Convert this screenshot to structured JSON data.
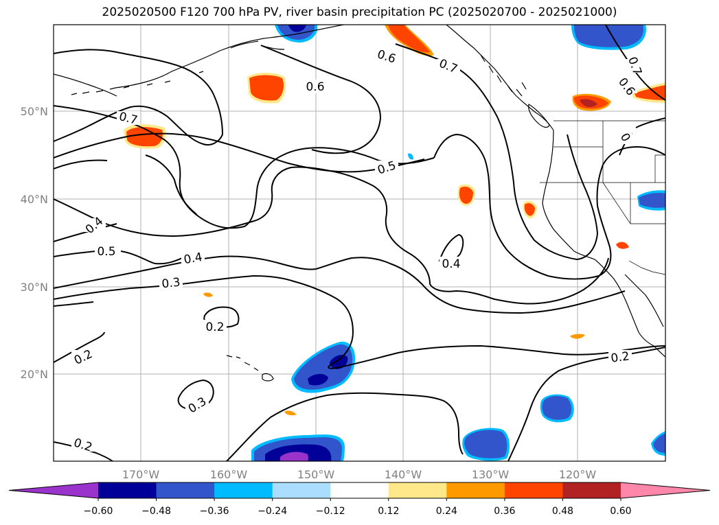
{
  "title": "2025020500 F120 700 hPa PV, river basin precipitation PC (2025020700 - 2025021000)",
  "map": {
    "lat_labels": [
      "20°N",
      "30°N",
      "40°N",
      "50°N"
    ],
    "lon_labels": [
      "170°W",
      "160°W",
      "150°W",
      "140°W",
      "130°W",
      "120°W"
    ],
    "contour_labels": {
      "c1": "0.7",
      "c2": "0.6",
      "c3": "0.7",
      "c4": "0.6",
      "c5": "0.7",
      "c6": "0.6",
      "c7": "0",
      "c8": "0.5",
      "c9": "0.4",
      "c10": "0.5",
      "c11": "0.4",
      "c12": "0.3",
      "c13": "0.4",
      "c14": "0.2",
      "c15": "0.2",
      "c16": "0.3",
      "c17": "0.2",
      "c18": "0.2"
    }
  },
  "colorbar": {
    "colors": [
      "#9933cc",
      "#000099",
      "#3355cc",
      "#00bbff",
      "#aaddff",
      "#ffffff",
      "#ffe88a",
      "#ff9900",
      "#ff4400",
      "#b22222",
      "#ff88aa"
    ],
    "ticks": [
      "−0.60",
      "−0.48",
      "−0.36",
      "−0.24",
      "−0.12",
      "0.12",
      "0.24",
      "0.36",
      "0.48",
      "0.60"
    ]
  }
}
